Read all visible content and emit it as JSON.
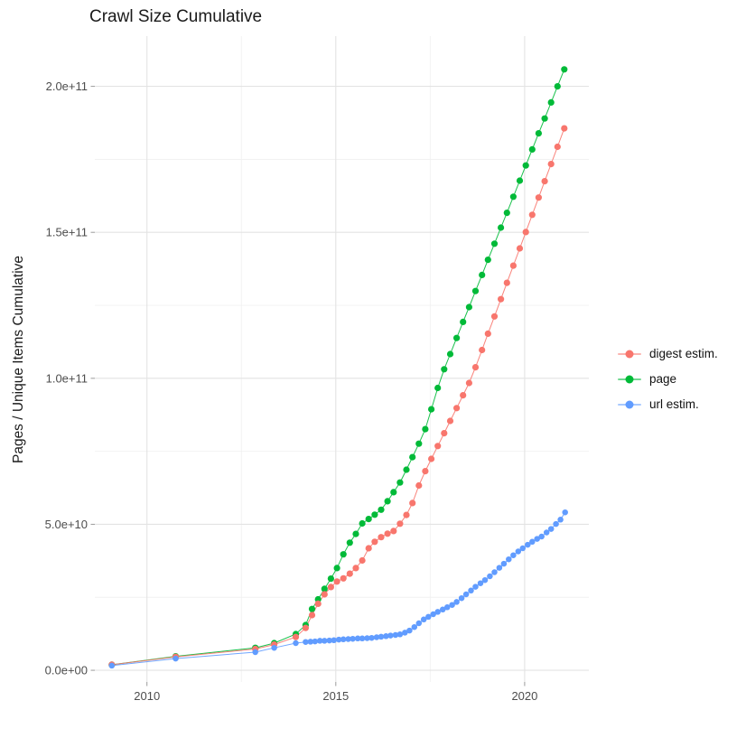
{
  "chart": {
    "title": "Crawl Size Cumulative"
  },
  "legend": {
    "items": [
      {
        "label": "digest estim.",
        "color": "#F8766D"
      },
      {
        "label": "page",
        "color": "#00BA38"
      },
      {
        "label": "url estim.",
        "color": "#619CFF"
      }
    ]
  },
  "colors": {
    "grid_major": "#E3E3E3",
    "grid_minor": "#F1F1F1",
    "tick_mark": "#9b9b9b",
    "tick_label": "#4d4d4d",
    "text": "#1a1a1a",
    "panel_background": "#ffffff"
  },
  "chart_data": {
    "type": "line",
    "title": "Crawl Size Cumulative",
    "xlabel": "",
    "ylabel": "Pages / Unique Items Cumulative",
    "grid": true,
    "legend_position": "right",
    "x_unit": "year",
    "y_unit_note": "values stored in billions (1 = 1e9 items)",
    "x_range": [
      2008.62,
      2021.7
    ],
    "y_range_billions": [
      -4.0,
      217.2
    ],
    "x_ticks": {
      "labels": [
        "2010",
        "2015",
        "2020"
      ],
      "values": [
        2010,
        2015,
        2020
      ]
    },
    "x_minor_breaks": [
      2012.5,
      2017.5
    ],
    "y_ticks": {
      "labels": [
        "0.0e+00",
        "5.0e+10",
        "1.0e+11",
        "1.5e+11",
        "2.0e+11"
      ],
      "values_billions": [
        0,
        50,
        100,
        150,
        200
      ]
    },
    "y_minor_breaks_billions": [
      25,
      75,
      125,
      175
    ],
    "draw_order": [
      1,
      0,
      2
    ],
    "series": [
      {
        "name": "digest estim.",
        "color": "#F8766D",
        "points": [
          [
            2009.07,
            1.9
          ],
          [
            2010.76,
            4.6
          ],
          [
            2012.87,
            7.3
          ],
          [
            2013.37,
            8.8
          ],
          [
            2013.94,
            11.4
          ],
          [
            2014.2,
            14.5
          ],
          [
            2014.37,
            18.9
          ],
          [
            2014.53,
            22.8
          ],
          [
            2014.7,
            26.0
          ],
          [
            2014.87,
            28.5
          ],
          [
            2015.03,
            30.4
          ],
          [
            2015.2,
            31.5
          ],
          [
            2015.37,
            33.1
          ],
          [
            2015.53,
            35.0
          ],
          [
            2015.7,
            37.6
          ],
          [
            2015.87,
            41.8
          ],
          [
            2016.03,
            44.0
          ],
          [
            2016.2,
            45.6
          ],
          [
            2016.37,
            46.8
          ],
          [
            2016.53,
            47.7
          ],
          [
            2016.7,
            50.2
          ],
          [
            2016.87,
            53.2
          ],
          [
            2017.03,
            57.3
          ],
          [
            2017.2,
            63.3
          ],
          [
            2017.37,
            68.2
          ],
          [
            2017.53,
            72.4
          ],
          [
            2017.7,
            76.8
          ],
          [
            2017.87,
            81.2
          ],
          [
            2018.03,
            85.4
          ],
          [
            2018.2,
            89.8
          ],
          [
            2018.37,
            94.2
          ],
          [
            2018.53,
            98.4
          ],
          [
            2018.7,
            103.8
          ],
          [
            2018.87,
            109.7
          ],
          [
            2019.03,
            115.3
          ],
          [
            2019.2,
            121.2
          ],
          [
            2019.37,
            127.1
          ],
          [
            2019.53,
            132.7
          ],
          [
            2019.7,
            138.6
          ],
          [
            2019.87,
            144.5
          ],
          [
            2020.03,
            150.1
          ],
          [
            2020.2,
            156.0
          ],
          [
            2020.37,
            161.9
          ],
          [
            2020.53,
            167.5
          ],
          [
            2020.7,
            173.4
          ],
          [
            2020.87,
            179.3
          ],
          [
            2021.05,
            185.6
          ]
        ]
      },
      {
        "name": "page",
        "color": "#00BA38",
        "points": [
          [
            2009.07,
            1.9
          ],
          [
            2010.76,
            4.8
          ],
          [
            2012.87,
            7.7
          ],
          [
            2013.37,
            9.3
          ],
          [
            2013.94,
            12.4
          ],
          [
            2014.2,
            15.5
          ],
          [
            2014.37,
            21.0
          ],
          [
            2014.53,
            24.3
          ],
          [
            2014.7,
            27.9
          ],
          [
            2014.87,
            31.4
          ],
          [
            2015.03,
            35.0
          ],
          [
            2015.2,
            39.7
          ],
          [
            2015.37,
            43.7
          ],
          [
            2015.53,
            46.7
          ],
          [
            2015.7,
            50.3
          ],
          [
            2015.87,
            51.8
          ],
          [
            2016.03,
            53.3
          ],
          [
            2016.2,
            55.0
          ],
          [
            2016.37,
            57.9
          ],
          [
            2016.53,
            61.0
          ],
          [
            2016.7,
            64.3
          ],
          [
            2016.87,
            68.7
          ],
          [
            2017.03,
            73.0
          ],
          [
            2017.2,
            77.6
          ],
          [
            2017.37,
            82.6
          ],
          [
            2017.53,
            89.4
          ],
          [
            2017.7,
            96.7
          ],
          [
            2017.87,
            103.1
          ],
          [
            2018.03,
            108.3
          ],
          [
            2018.2,
            113.8
          ],
          [
            2018.37,
            119.3
          ],
          [
            2018.53,
            124.4
          ],
          [
            2018.7,
            129.9
          ],
          [
            2018.87,
            135.4
          ],
          [
            2019.03,
            140.6
          ],
          [
            2019.2,
            146.1
          ],
          [
            2019.37,
            151.6
          ],
          [
            2019.53,
            156.7
          ],
          [
            2019.7,
            162.2
          ],
          [
            2019.87,
            167.7
          ],
          [
            2020.03,
            172.9
          ],
          [
            2020.2,
            178.4
          ],
          [
            2020.37,
            183.9
          ],
          [
            2020.53,
            189.0
          ],
          [
            2020.7,
            194.5
          ],
          [
            2020.87,
            200.0
          ],
          [
            2021.05,
            205.8
          ]
        ]
      },
      {
        "name": "url estim.",
        "color": "#619CFF",
        "points": [
          [
            2009.07,
            1.6
          ],
          [
            2010.76,
            4.0
          ],
          [
            2012.87,
            6.2
          ],
          [
            2013.37,
            7.7
          ],
          [
            2013.94,
            9.3
          ],
          [
            2014.2,
            9.7
          ],
          [
            2014.33,
            9.8
          ],
          [
            2014.45,
            9.9
          ],
          [
            2014.58,
            10.1
          ],
          [
            2014.7,
            10.1
          ],
          [
            2014.83,
            10.2
          ],
          [
            2014.95,
            10.3
          ],
          [
            2015.08,
            10.5
          ],
          [
            2015.2,
            10.6
          ],
          [
            2015.33,
            10.7
          ],
          [
            2015.45,
            10.8
          ],
          [
            2015.58,
            10.9
          ],
          [
            2015.7,
            10.9
          ],
          [
            2015.83,
            11.0
          ],
          [
            2015.95,
            11.1
          ],
          [
            2016.08,
            11.3
          ],
          [
            2016.2,
            11.5
          ],
          [
            2016.33,
            11.7
          ],
          [
            2016.45,
            11.9
          ],
          [
            2016.58,
            12.1
          ],
          [
            2016.7,
            12.3
          ],
          [
            2016.83,
            12.9
          ],
          [
            2016.95,
            13.6
          ],
          [
            2017.08,
            14.8
          ],
          [
            2017.2,
            16.1
          ],
          [
            2017.33,
            17.4
          ],
          [
            2017.45,
            18.3
          ],
          [
            2017.58,
            19.2
          ],
          [
            2017.7,
            20.0
          ],
          [
            2017.83,
            20.8
          ],
          [
            2017.95,
            21.6
          ],
          [
            2018.08,
            22.4
          ],
          [
            2018.2,
            23.4
          ],
          [
            2018.33,
            24.7
          ],
          [
            2018.45,
            26.0
          ],
          [
            2018.58,
            27.3
          ],
          [
            2018.7,
            28.6
          ],
          [
            2018.83,
            29.8
          ],
          [
            2018.95,
            30.9
          ],
          [
            2019.08,
            32.2
          ],
          [
            2019.2,
            33.6
          ],
          [
            2019.33,
            35.1
          ],
          [
            2019.45,
            36.5
          ],
          [
            2019.58,
            38.0
          ],
          [
            2019.7,
            39.4
          ],
          [
            2019.83,
            40.7
          ],
          [
            2019.95,
            41.8
          ],
          [
            2020.08,
            43.0
          ],
          [
            2020.2,
            44.0
          ],
          [
            2020.33,
            45.0
          ],
          [
            2020.45,
            45.8
          ],
          [
            2020.58,
            47.2
          ],
          [
            2020.7,
            48.4
          ],
          [
            2020.83,
            50.1
          ],
          [
            2020.95,
            51.6
          ],
          [
            2021.07,
            54.1
          ]
        ]
      }
    ]
  }
}
